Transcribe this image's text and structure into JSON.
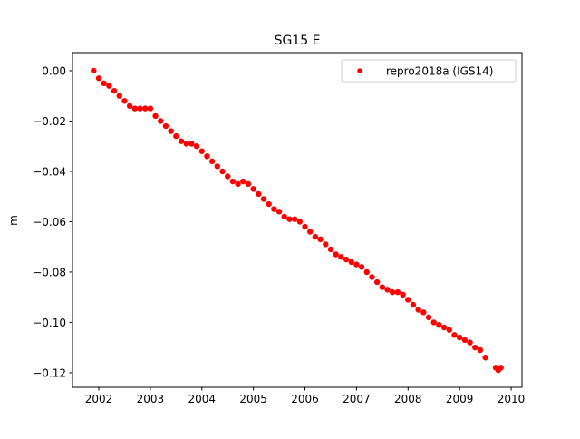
{
  "chart_data": {
    "type": "scatter",
    "title": "SG15 E",
    "xlabel": "",
    "ylabel": "m",
    "xlim": [
      2001.49,
      2010.21
    ],
    "ylim": [
      -0.1258,
      0.0072
    ],
    "xticks": [
      2002,
      2003,
      2004,
      2005,
      2006,
      2007,
      2008,
      2009,
      2010
    ],
    "xtick_labels": [
      "2002",
      "2003",
      "2004",
      "2005",
      "2006",
      "2007",
      "2008",
      "2009",
      "2010"
    ],
    "yticks": [
      0.0,
      -0.02,
      -0.04,
      -0.06,
      -0.08,
      -0.1,
      -0.12
    ],
    "ytick_labels": [
      "0.00",
      "−0.02",
      "−0.04",
      "−0.06",
      "−0.08",
      "−0.10",
      "−0.12"
    ],
    "grid": false,
    "legend_position": "top-right",
    "series": [
      {
        "name": "repro2018a (IGS14)",
        "color": "#ff0000",
        "marker": "circle",
        "x": [
          2001.9,
          2002.0,
          2002.1,
          2002.2,
          2002.3,
          2002.4,
          2002.5,
          2002.6,
          2002.7,
          2002.8,
          2002.9,
          2003.0,
          2003.1,
          2003.2,
          2003.3,
          2003.4,
          2003.5,
          2003.6,
          2003.7,
          2003.8,
          2003.9,
          2004.0,
          2004.1,
          2004.2,
          2004.3,
          2004.4,
          2004.5,
          2004.6,
          2004.7,
          2004.8,
          2004.9,
          2005.0,
          2005.1,
          2005.2,
          2005.3,
          2005.4,
          2005.5,
          2005.6,
          2005.7,
          2005.8,
          2005.9,
          2006.0,
          2006.1,
          2006.2,
          2006.3,
          2006.4,
          2006.5,
          2006.6,
          2006.7,
          2006.8,
          2006.9,
          2007.0,
          2007.1,
          2007.2,
          2007.3,
          2007.4,
          2007.5,
          2007.6,
          2007.7,
          2007.8,
          2007.9,
          2008.0,
          2008.1,
          2008.2,
          2008.3,
          2008.4,
          2008.5,
          2008.6,
          2008.7,
          2008.8,
          2008.9,
          2009.0,
          2009.1,
          2009.2,
          2009.3,
          2009.4,
          2009.5,
          2009.7,
          2009.75,
          2009.8
        ],
        "y": [
          0.0,
          -0.003,
          -0.005,
          -0.006,
          -0.008,
          -0.01,
          -0.012,
          -0.014,
          -0.015,
          -0.015,
          -0.015,
          -0.015,
          -0.018,
          -0.02,
          -0.022,
          -0.024,
          -0.026,
          -0.028,
          -0.029,
          -0.029,
          -0.03,
          -0.032,
          -0.034,
          -0.036,
          -0.038,
          -0.04,
          -0.042,
          -0.044,
          -0.045,
          -0.044,
          -0.045,
          -0.047,
          -0.049,
          -0.051,
          -0.053,
          -0.055,
          -0.056,
          -0.058,
          -0.059,
          -0.059,
          -0.06,
          -0.062,
          -0.064,
          -0.066,
          -0.067,
          -0.069,
          -0.071,
          -0.073,
          -0.074,
          -0.075,
          -0.076,
          -0.077,
          -0.078,
          -0.08,
          -0.082,
          -0.084,
          -0.086,
          -0.087,
          -0.088,
          -0.088,
          -0.089,
          -0.091,
          -0.093,
          -0.095,
          -0.096,
          -0.098,
          -0.1,
          -0.101,
          -0.102,
          -0.103,
          -0.105,
          -0.106,
          -0.107,
          -0.108,
          -0.11,
          -0.111,
          -0.114,
          -0.118,
          -0.119,
          -0.118
        ]
      }
    ]
  }
}
